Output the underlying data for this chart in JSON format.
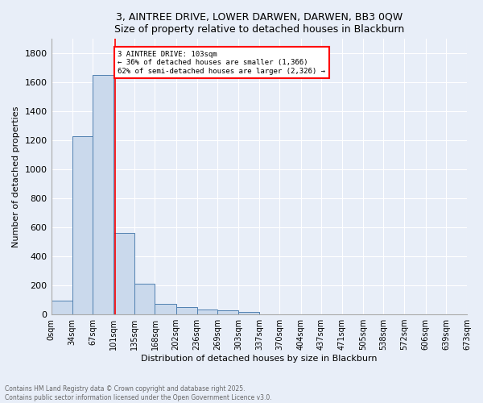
{
  "title": "3, AINTREE DRIVE, LOWER DARWEN, DARWEN, BB3 0QW",
  "subtitle": "Size of property relative to detached houses in Blackburn",
  "xlabel": "Distribution of detached houses by size in Blackburn",
  "ylabel": "Number of detached properties",
  "bin_edges": [
    0,
    34,
    67,
    101,
    135,
    168,
    202,
    236,
    269,
    303,
    337,
    370,
    404,
    437,
    471,
    505,
    538,
    572,
    606,
    639,
    673
  ],
  "bin_counts": [
    95,
    1230,
    1650,
    560,
    210,
    70,
    48,
    35,
    27,
    15,
    0,
    0,
    0,
    0,
    0,
    0,
    0,
    0,
    0,
    0
  ],
  "bar_color": "#cad9ec",
  "bar_edge_color": "#5080b0",
  "red_line_x": 103,
  "annotation_text": "3 AINTREE DRIVE: 103sqm\n← 36% of detached houses are smaller (1,366)\n62% of semi-detached houses are larger (2,326) →",
  "annotation_box_color": "white",
  "annotation_box_edge_color": "red",
  "ylim": [
    0,
    1900
  ],
  "yticks": [
    0,
    200,
    400,
    600,
    800,
    1000,
    1200,
    1400,
    1600,
    1800
  ],
  "tick_labels": [
    "0sqm",
    "34sqm",
    "67sqm",
    "101sqm",
    "135sqm",
    "168sqm",
    "202sqm",
    "236sqm",
    "269sqm",
    "303sqm",
    "337sqm",
    "370sqm",
    "404sqm",
    "437sqm",
    "471sqm",
    "505sqm",
    "538sqm",
    "572sqm",
    "606sqm",
    "639sqm",
    "673sqm"
  ],
  "footer_line1": "Contains HM Land Registry data © Crown copyright and database right 2025.",
  "footer_line2": "Contains public sector information licensed under the Open Government Licence v3.0.",
  "bg_color": "#e8eef8",
  "plot_bg_color": "#e8eef8",
  "grid_color": "white"
}
